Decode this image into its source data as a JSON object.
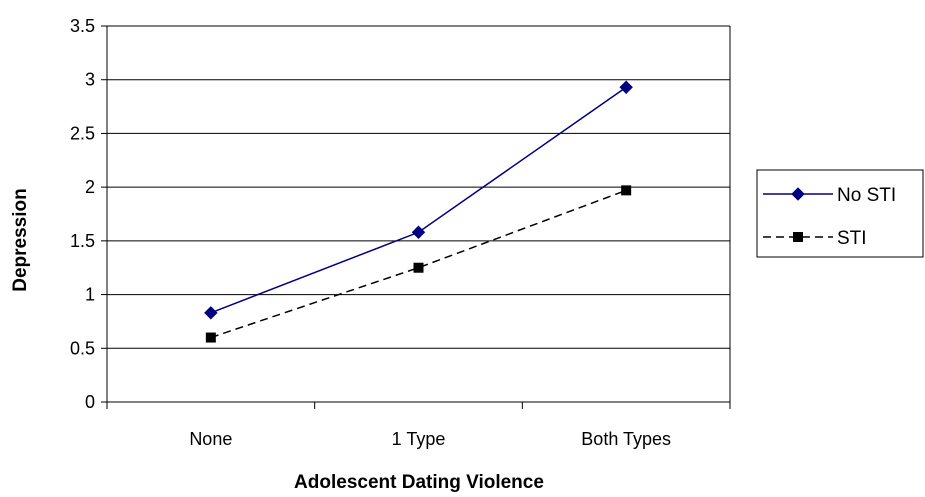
{
  "chart_data": {
    "type": "line",
    "title": "",
    "xlabel": "Adolescent Dating Violence",
    "ylabel": "Depression",
    "categories": [
      "None",
      "1 Type",
      "Both Types"
    ],
    "ylim": [
      0,
      3.5
    ],
    "yticks": [
      "0",
      "0.5",
      "1",
      "1.5",
      "2",
      "2.5",
      "3",
      "3.5"
    ],
    "grid": "horizontal",
    "legend_position": "right",
    "series": [
      {
        "name": "No STI",
        "values": [
          0.83,
          1.58,
          2.93
        ],
        "color": "#000080",
        "line": "solid",
        "marker": "diamond"
      },
      {
        "name": "STI",
        "values": [
          0.6,
          1.25,
          1.97
        ],
        "color": "#000000",
        "line": "dashed",
        "marker": "square"
      }
    ]
  }
}
